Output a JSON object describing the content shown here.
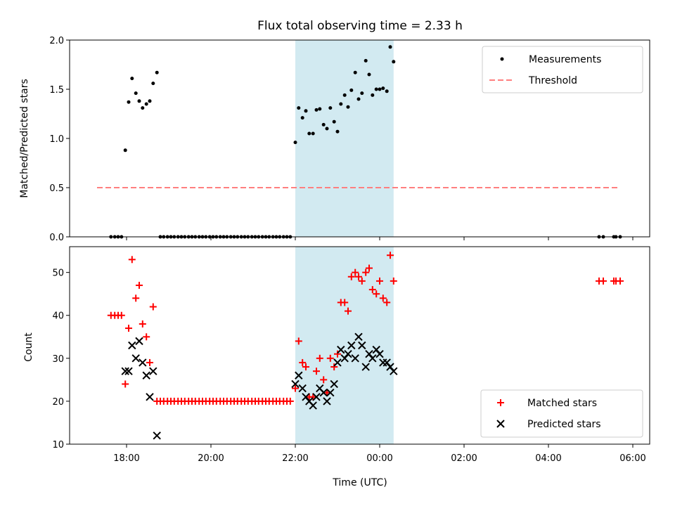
{
  "chart_data": [
    {
      "type": "scatter",
      "title": "Flux total observing time = 2.33 h",
      "xlabel": "",
      "ylabel": "Matched/Predicted stars",
      "ylim": [
        0,
        2.0
      ],
      "yticks": [
        "0.0",
        "0.5",
        "1.0",
        "1.5",
        "2.0"
      ],
      "xlim": [
        16.65,
        30.4
      ],
      "shaded_region": {
        "x": [
          22.0,
          24.33
        ],
        "color": "#add8e6"
      },
      "legend": {
        "position": "top-right",
        "entries": [
          "Measurements",
          "Threshold"
        ]
      },
      "series": [
        {
          "name": "Measurements",
          "marker": "dot",
          "color": "#000000",
          "x": [
            17.63,
            17.72,
            17.8,
            17.88,
            17.97,
            18.05,
            18.13,
            18.22,
            18.3,
            18.38,
            18.47,
            18.55,
            18.63,
            18.72,
            18.8,
            18.88,
            18.97,
            19.05,
            19.13,
            19.22,
            19.3,
            19.38,
            19.47,
            19.55,
            19.63,
            19.72,
            19.8,
            19.88,
            19.97,
            20.05,
            20.13,
            20.22,
            20.3,
            20.38,
            20.47,
            20.55,
            20.63,
            20.72,
            20.8,
            20.88,
            20.97,
            21.05,
            21.13,
            21.22,
            21.3,
            21.38,
            21.47,
            21.55,
            21.63,
            21.72,
            21.8,
            21.88,
            22.0,
            22.08,
            22.17,
            22.25,
            22.33,
            22.42,
            22.5,
            22.58,
            22.67,
            22.75,
            22.83,
            22.92,
            23.0,
            23.08,
            23.17,
            23.25,
            23.33,
            23.42,
            23.5,
            23.58,
            23.67,
            23.75,
            23.83,
            23.92,
            24.0,
            24.08,
            24.17,
            24.25,
            24.33,
            29.2,
            29.3,
            29.55,
            29.6,
            29.7
          ],
          "y": [
            0,
            0,
            0,
            0,
            0.88,
            1.37,
            1.61,
            1.46,
            1.38,
            1.31,
            1.35,
            1.38,
            1.56,
            1.67,
            0,
            0,
            0,
            0,
            0,
            0,
            0,
            0,
            0,
            0,
            0,
            0,
            0,
            0,
            0,
            0,
            0,
            0,
            0,
            0,
            0,
            0,
            0,
            0,
            0,
            0,
            0,
            0,
            0,
            0,
            0,
            0,
            0,
            0,
            0,
            0,
            0,
            0,
            0.96,
            1.31,
            1.21,
            1.28,
            1.05,
            1.05,
            1.29,
            1.3,
            1.14,
            1.1,
            1.31,
            1.17,
            1.07,
            1.35,
            1.44,
            1.32,
            1.49,
            1.67,
            1.4,
            1.46,
            1.79,
            1.65,
            1.44,
            1.5,
            1.5,
            1.51,
            1.48,
            1.93,
            1.78,
            0,
            0,
            0,
            0,
            0
          ]
        },
        {
          "name": "Threshold",
          "style": "dashed",
          "color": "#ff7f7f",
          "x": [
            17.3,
            29.7
          ],
          "y": [
            0.5,
            0.5
          ]
        }
      ]
    },
    {
      "type": "scatter",
      "title": "",
      "xlabel": "Time (UTC)",
      "ylabel": "Count",
      "ylim": [
        10,
        56
      ],
      "yticks": [
        "10",
        "20",
        "30",
        "40",
        "50"
      ],
      "xlim": [
        16.65,
        30.4
      ],
      "xticks": [
        {
          "value": 18,
          "label": "18:00"
        },
        {
          "value": 20,
          "label": "20:00"
        },
        {
          "value": 22,
          "label": "22:00"
        },
        {
          "value": 24,
          "label": "00:00"
        },
        {
          "value": 26,
          "label": "02:00"
        },
        {
          "value": 28,
          "label": "04:00"
        },
        {
          "value": 30,
          "label": "06:00"
        }
      ],
      "shaded_region": {
        "x": [
          22.0,
          24.33
        ],
        "color": "#add8e6"
      },
      "legend": {
        "position": "bottom-right",
        "entries": [
          "Matched stars",
          "Predicted stars"
        ]
      },
      "series": [
        {
          "name": "Matched stars",
          "marker": "plus",
          "color": "#ff0000",
          "x": [
            17.63,
            17.72,
            17.8,
            17.88,
            17.97,
            18.05,
            18.13,
            18.22,
            18.3,
            18.38,
            18.47,
            18.55,
            18.63,
            18.72,
            18.8,
            18.88,
            18.97,
            19.05,
            19.13,
            19.22,
            19.3,
            19.38,
            19.47,
            19.55,
            19.63,
            19.72,
            19.8,
            19.88,
            19.97,
            20.05,
            20.13,
            20.22,
            20.3,
            20.38,
            20.47,
            20.55,
            20.63,
            20.72,
            20.8,
            20.88,
            20.97,
            21.05,
            21.13,
            21.22,
            21.3,
            21.38,
            21.47,
            21.55,
            21.63,
            21.72,
            21.8,
            21.88,
            22.0,
            22.08,
            22.17,
            22.25,
            22.33,
            22.42,
            22.5,
            22.58,
            22.67,
            22.75,
            22.83,
            22.92,
            23.0,
            23.08,
            23.17,
            23.25,
            23.33,
            23.42,
            23.5,
            23.58,
            23.67,
            23.75,
            23.83,
            23.92,
            24.0,
            24.08,
            24.17,
            24.25,
            24.33,
            29.2,
            29.3,
            29.55,
            29.6,
            29.7
          ],
          "y": [
            40,
            40,
            40,
            40,
            24,
            37,
            53,
            44,
            47,
            38,
            35,
            29,
            42,
            20,
            20,
            20,
            20,
            20,
            20,
            20,
            20,
            20,
            20,
            20,
            20,
            20,
            20,
            20,
            20,
            20,
            20,
            20,
            20,
            20,
            20,
            20,
            20,
            20,
            20,
            20,
            20,
            20,
            20,
            20,
            20,
            20,
            20,
            20,
            20,
            20,
            20,
            20,
            23,
            34,
            29,
            28,
            21,
            21,
            27,
            30,
            25,
            22,
            30,
            28,
            31,
            43,
            43,
            41,
            49,
            50,
            49,
            48,
            50,
            51,
            46,
            45,
            48,
            44,
            43,
            54,
            48,
            48,
            48,
            48,
            48,
            48
          ]
        },
        {
          "name": "Predicted stars",
          "marker": "x",
          "color": "#000000",
          "x": [
            17.97,
            18.05,
            18.13,
            18.22,
            18.3,
            18.38,
            18.47,
            18.55,
            18.63,
            18.72,
            22.0,
            22.08,
            22.17,
            22.25,
            22.33,
            22.42,
            22.5,
            22.58,
            22.67,
            22.75,
            22.83,
            22.92,
            23.0,
            23.08,
            23.17,
            23.25,
            23.33,
            23.42,
            23.5,
            23.58,
            23.67,
            23.75,
            23.83,
            23.92,
            24.0,
            24.08,
            24.17,
            24.25,
            24.33
          ],
          "y": [
            27,
            27,
            33,
            30,
            34,
            29,
            26,
            21,
            27,
            12,
            24,
            26,
            23,
            21,
            20,
            19,
            21,
            23,
            22,
            20,
            22,
            24,
            29,
            32,
            30,
            31,
            33,
            30,
            35,
            33,
            28,
            31,
            30,
            32,
            31,
            29,
            29,
            28,
            27
          ]
        }
      ]
    }
  ]
}
